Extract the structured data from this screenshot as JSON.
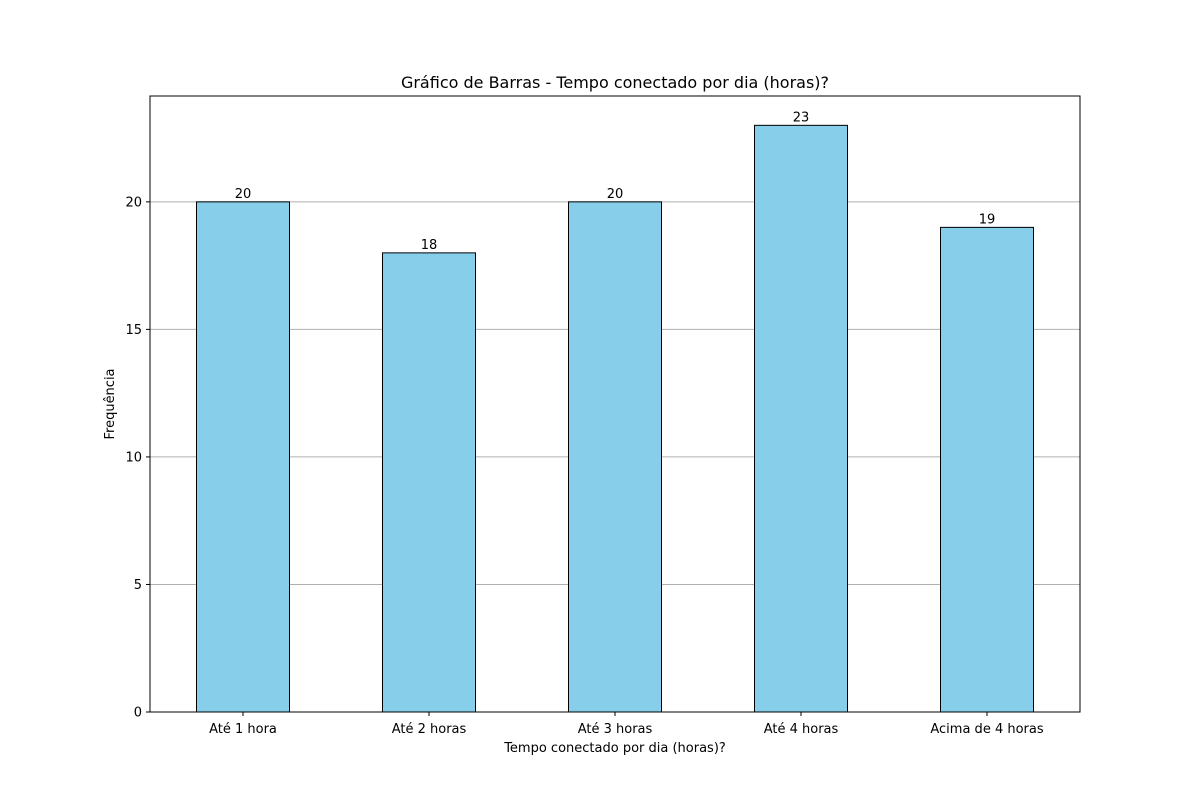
{
  "chart_data": {
    "type": "bar",
    "title": "Gráfico de Barras - Tempo conectado por dia (horas)?",
    "xlabel": "Tempo conectado por dia (horas)?",
    "ylabel": "Frequência",
    "categories": [
      "Até 1 hora",
      "Até 2 horas",
      "Até 3 horas",
      "Até 4 horas",
      "Acima de 4 horas"
    ],
    "values": [
      20,
      18,
      20,
      23,
      19
    ],
    "data_labels": [
      "20",
      "18",
      "20",
      "23",
      "19"
    ],
    "yticks": [
      0,
      5,
      10,
      15,
      20
    ],
    "ylim": [
      0,
      24.15
    ],
    "grid": "y-axis only",
    "legend": "none",
    "colors": {
      "bar_fill": "#87ceeb",
      "bar_edge": "#000000",
      "grid": "#b0b0b0",
      "axes": "#000000"
    }
  }
}
